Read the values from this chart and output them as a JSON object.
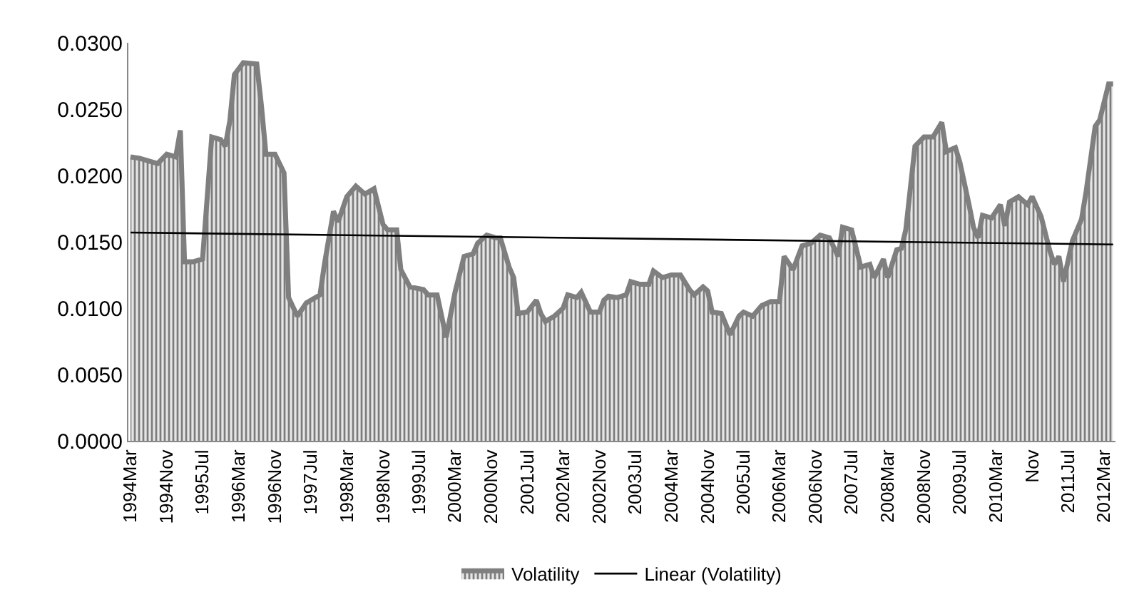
{
  "chart_data": {
    "type": "area",
    "ylim": [
      0,
      0.03
    ],
    "yticks": [
      {
        "value": 0,
        "label": "0.0000"
      },
      {
        "value": 0.005,
        "label": "0.0050"
      },
      {
        "value": 0.01,
        "label": "0.0100"
      },
      {
        "value": 0.015,
        "label": "0.0150"
      },
      {
        "value": 0.02,
        "label": "0.0200"
      },
      {
        "value": 0.025,
        "label": "0.0250"
      },
      {
        "value": 0.03,
        "label": "0.0300"
      }
    ],
    "xlim": [
      "1994-02-15",
      "2012-05-17"
    ],
    "xticks": [
      {
        "value": "1994-03",
        "label": "1994Mar"
      },
      {
        "value": "1994-11",
        "label": "1994Nov"
      },
      {
        "value": "1995-07",
        "label": "1995Jul"
      },
      {
        "value": "1996-03",
        "label": "1996Mar"
      },
      {
        "value": "1996-11",
        "label": "1996Nov"
      },
      {
        "value": "1997-07",
        "label": "1997Jul"
      },
      {
        "value": "1998-03",
        "label": "1998Mar"
      },
      {
        "value": "1998-11",
        "label": "1998Nov"
      },
      {
        "value": "1999-07",
        "label": "1999Jul"
      },
      {
        "value": "2000-03",
        "label": "2000Mar"
      },
      {
        "value": "2000-11",
        "label": "2000Nov"
      },
      {
        "value": "2001-07",
        "label": "2001Jul"
      },
      {
        "value": "2002-03",
        "label": "2002Mar"
      },
      {
        "value": "2002-11",
        "label": "2002Nov"
      },
      {
        "value": "2003-07",
        "label": "2003Jul"
      },
      {
        "value": "2004-03",
        "label": "2004Mar"
      },
      {
        "value": "2004-11",
        "label": "2004Nov"
      },
      {
        "value": "2005-07",
        "label": "2005Jul"
      },
      {
        "value": "2006-03",
        "label": "2006Mar"
      },
      {
        "value": "2006-11",
        "label": "2006Nov"
      },
      {
        "value": "2007-07",
        "label": "2007Jul"
      },
      {
        "value": "2008-03",
        "label": "2008Mar"
      },
      {
        "value": "2008-11",
        "label": "2008Nov"
      },
      {
        "value": "2009-07",
        "label": "2009Jul"
      },
      {
        "value": "2010-03",
        "label": "2010Mar"
      },
      {
        "value": "2010-11",
        "label": "Nov"
      },
      {
        "value": "2011-07",
        "label": "2011Jul"
      },
      {
        "value": "2012-03",
        "label": "2012Mar"
      }
    ],
    "grid": false,
    "legend": "bottom",
    "series": [
      {
        "name": "Volatility",
        "color": "#7f7f7f",
        "x": [
          "1994-03",
          "1994-05",
          "1994-07",
          "1994-09",
          "1994-11",
          "1995-01",
          "1995-02",
          "1995-03",
          "1995-05",
          "1995-07",
          "1995-09",
          "1995-11",
          "1995-12",
          "1996-01",
          "1996-02",
          "1996-04",
          "1996-07",
          "1996-08",
          "1996-09",
          "1996-11",
          "1997-01",
          "1997-02",
          "1997-04",
          "1997-06",
          "1997-09",
          "1997-10",
          "1997-12",
          "1998-01",
          "1998-03",
          "1998-05",
          "1998-07",
          "1998-09",
          "1998-11",
          "1998-12",
          "1999-02",
          "1999-03",
          "1999-05",
          "1999-08",
          "1999-09",
          "1999-11",
          "2000-01",
          "2000-03",
          "2000-05",
          "2000-07",
          "2000-08",
          "2000-10",
          "2000-12",
          "2001-01",
          "2001-03",
          "2001-04",
          "2001-05",
          "2001-07",
          "2001-09",
          "2001-10",
          "2001-11",
          "2002-01",
          "2002-03",
          "2002-04",
          "2002-06",
          "2002-07",
          "2002-09",
          "2002-11",
          "2002-12",
          "2003-01",
          "2003-03",
          "2003-05",
          "2003-06",
          "2003-08",
          "2003-10",
          "2003-11",
          "2004-01",
          "2004-03",
          "2004-05",
          "2004-07",
          "2004-08",
          "2004-10",
          "2004-11",
          "2004-12",
          "2005-02",
          "2005-04",
          "2005-06",
          "2005-07",
          "2005-09",
          "2005-11",
          "2006-01",
          "2006-03",
          "2006-04",
          "2006-06",
          "2006-08",
          "2006-10",
          "2006-12",
          "2007-02",
          "2007-04",
          "2007-05",
          "2007-07",
          "2007-09",
          "2007-11",
          "2007-12",
          "2008-02",
          "2008-03",
          "2008-05",
          "2008-06",
          "2008-07",
          "2008-09",
          "2008-11",
          "2009-01",
          "2009-03",
          "2009-04",
          "2009-06",
          "2009-07",
          "2009-09",
          "2009-10",
          "2009-11",
          "2009-12",
          "2010-02",
          "2010-04",
          "2010-05",
          "2010-06",
          "2010-08",
          "2010-10",
          "2010-11",
          "2011-01",
          "2011-03",
          "2011-04",
          "2011-05",
          "2011-06",
          "2011-08",
          "2011-10",
          "2011-11",
          "2012-01",
          "2012-02",
          "2012-04",
          "2012-05"
        ],
        "values": [
          0.0214,
          0.0213,
          0.0211,
          0.0209,
          0.0216,
          0.0214,
          0.0234,
          0.0135,
          0.0135,
          0.0137,
          0.0229,
          0.0227,
          0.0222,
          0.0241,
          0.0276,
          0.0285,
          0.0284,
          0.0253,
          0.0216,
          0.0216,
          0.0202,
          0.0108,
          0.0094,
          0.0104,
          0.011,
          0.0133,
          0.0173,
          0.0165,
          0.0184,
          0.0192,
          0.0186,
          0.019,
          0.0163,
          0.0159,
          0.0159,
          0.0129,
          0.0116,
          0.0114,
          0.011,
          0.011,
          0.0078,
          0.0112,
          0.0139,
          0.0141,
          0.0149,
          0.0155,
          0.0153,
          0.0153,
          0.0131,
          0.0123,
          0.0096,
          0.0097,
          0.0106,
          0.0096,
          0.009,
          0.0094,
          0.01,
          0.011,
          0.0108,
          0.0112,
          0.0097,
          0.0097,
          0.0106,
          0.0109,
          0.0108,
          0.011,
          0.012,
          0.0118,
          0.0118,
          0.0128,
          0.0123,
          0.0125,
          0.0125,
          0.0114,
          0.011,
          0.0116,
          0.0113,
          0.0097,
          0.0096,
          0.008,
          0.0094,
          0.0097,
          0.0094,
          0.0102,
          0.0105,
          0.0105,
          0.0139,
          0.0129,
          0.0147,
          0.0149,
          0.0155,
          0.0153,
          0.0139,
          0.0161,
          0.0159,
          0.0131,
          0.0133,
          0.0123,
          0.0137,
          0.0123,
          0.0144,
          0.0145,
          0.0159,
          0.0222,
          0.0229,
          0.0229,
          0.024,
          0.0218,
          0.0221,
          0.021,
          0.0178,
          0.0161,
          0.0153,
          0.017,
          0.0168,
          0.0178,
          0.0162,
          0.018,
          0.0184,
          0.0178,
          0.0184,
          0.0169,
          0.0143,
          0.0133,
          0.0139,
          0.012,
          0.0151,
          0.0167,
          0.0188,
          0.0237,
          0.0242,
          0.0269,
          0.0269
        ]
      },
      {
        "name": "Linear (Volatility)",
        "type": "line",
        "color": "#000000",
        "x": [
          "1994-03",
          "2012-05"
        ],
        "values": [
          0.0157,
          0.0148
        ]
      }
    ]
  }
}
